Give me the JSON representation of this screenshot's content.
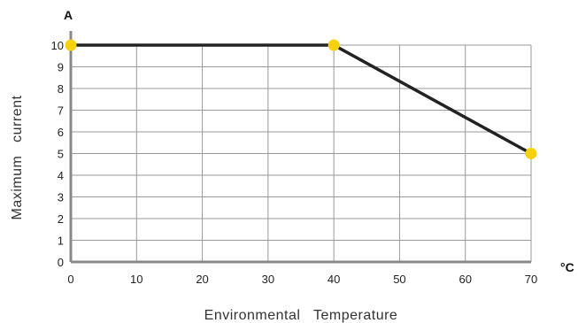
{
  "chart_data": {
    "type": "line",
    "title": "",
    "xlabel": "Environmental   Temperature",
    "ylabel": "Maximum   current",
    "x_unit": "°C",
    "y_unit": "A",
    "xlim": [
      0,
      70
    ],
    "ylim": [
      0,
      10
    ],
    "x_ticks": [
      "0",
      "10",
      "20",
      "30",
      "40",
      "50",
      "60",
      "70"
    ],
    "y_ticks": [
      "0",
      "1",
      "2",
      "3",
      "4",
      "5",
      "6",
      "7",
      "8",
      "9",
      "10"
    ],
    "grid": true,
    "series": [
      {
        "x": [
          0,
          40,
          70
        ],
        "y": [
          10,
          10,
          5
        ]
      }
    ],
    "colors": {
      "line": "#222222",
      "marker": "#f5d20c",
      "grid": "#999999",
      "axis": "#888888"
    }
  }
}
